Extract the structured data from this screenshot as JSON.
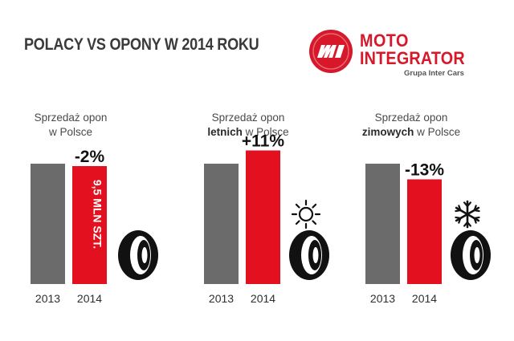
{
  "title": "POLACY VS OPONY W 2014 ROKU",
  "logo": {
    "line1": "MOTO",
    "line2": "INTEGRATOR",
    "sub": "Grupa Inter Cars"
  },
  "colors": {
    "bar_2013": "#6b6b6b",
    "bar_2014": "#e3111f",
    "brand": "#d6182a"
  },
  "chart_data": [
    {
      "type": "bar",
      "title_prefix": "Sprzedaż opon",
      "title_bold": "",
      "title_suffix": "w Polsce",
      "categories": [
        "2013",
        "2014"
      ],
      "values": [
        100,
        98
      ],
      "change_label": "-2%",
      "bar_label": "9,5 MLN SZT.",
      "icon": "tire-icon"
    },
    {
      "type": "bar",
      "title_prefix": "Sprzedaż opon",
      "title_bold": "letnich",
      "title_suffix": "w Polsce",
      "categories": [
        "2013",
        "2014"
      ],
      "values": [
        100,
        111
      ],
      "change_label": "+11%",
      "bar_label": "",
      "icon": "sun-icon"
    },
    {
      "type": "bar",
      "title_prefix": "Sprzedaż opon",
      "title_bold": "zimowych",
      "title_suffix": "w Polsce",
      "categories": [
        "2013",
        "2014"
      ],
      "values": [
        100,
        87
      ],
      "change_label": "-13%",
      "bar_label": "",
      "icon": "snowflake-icon"
    }
  ]
}
